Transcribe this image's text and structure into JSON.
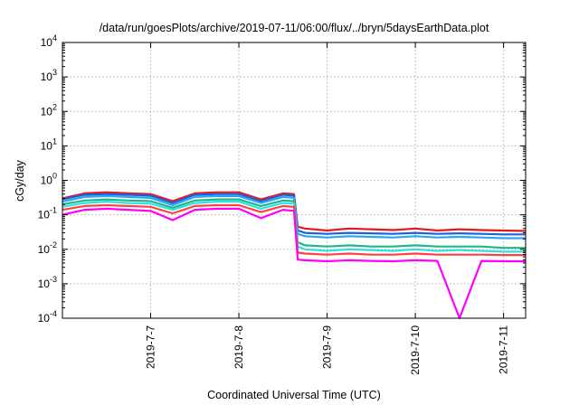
{
  "chart_data": {
    "type": "line",
    "title": "/data/run/goesPlots/archive/2019-07-11/06:00/flux/../bryn/5daysEarthData.plot",
    "xlabel": "Coordinated Universal Time (UTC)",
    "ylabel": "cGy/day",
    "yscale": "log",
    "ylim": [
      0.0001,
      10000
    ],
    "xlim": [
      "2019-07-06T00:00",
      "2019-07-11T06:00"
    ],
    "grid": true,
    "legend": "none",
    "y_ticks": [
      {
        "value": 10000,
        "base": "10",
        "exp": "4"
      },
      {
        "value": 1000,
        "base": "10",
        "exp": "3"
      },
      {
        "value": 100,
        "base": "10",
        "exp": "2"
      },
      {
        "value": 10,
        "base": "10",
        "exp": "1"
      },
      {
        "value": 1,
        "base": "10",
        "exp": "0"
      },
      {
        "value": 0.1,
        "base": "10",
        "exp": "-1"
      },
      {
        "value": 0.01,
        "base": "10",
        "exp": "-2"
      },
      {
        "value": 0.001,
        "base": "10",
        "exp": "-3"
      },
      {
        "value": 0.0001,
        "base": "10",
        "exp": "-4"
      }
    ],
    "x_ticks": [
      {
        "value": "2019-07-07T00:00",
        "label": "2019-7-7"
      },
      {
        "value": "2019-07-08T00:00",
        "label": "2019-7-8"
      },
      {
        "value": "2019-07-09T00:00",
        "label": "2019-7-9"
      },
      {
        "value": "2019-07-10T00:00",
        "label": "2019-7-10"
      },
      {
        "value": "2019-07-11T00:00",
        "label": "2019-7-11"
      }
    ],
    "x": [
      "2019-07-06T00:00",
      "2019-07-06T06:00",
      "2019-07-06T12:00",
      "2019-07-06T18:00",
      "2019-07-07T00:00",
      "2019-07-07T06:00",
      "2019-07-07T12:00",
      "2019-07-07T18:00",
      "2019-07-08T00:00",
      "2019-07-08T06:00",
      "2019-07-08T12:00",
      "2019-07-08T15:00",
      "2019-07-08T16:00",
      "2019-07-08T18:00",
      "2019-07-09T00:00",
      "2019-07-09T06:00",
      "2019-07-09T12:00",
      "2019-07-09T18:00",
      "2019-07-10T00:00",
      "2019-07-10T06:00",
      "2019-07-10T12:00",
      "2019-07-10T18:00",
      "2019-07-11T00:00",
      "2019-07-11T06:00"
    ],
    "series": [
      {
        "color": "#e41a1c",
        "values": [
          0.3,
          0.42,
          0.45,
          0.42,
          0.4,
          0.25,
          0.42,
          0.45,
          0.45,
          0.28,
          0.42,
          0.4,
          0.045,
          0.04,
          0.035,
          0.04,
          0.038,
          0.036,
          0.04,
          0.035,
          0.038,
          0.036,
          0.035,
          0.034
        ]
      },
      {
        "color": "#1f5fe0",
        "values": [
          0.28,
          0.38,
          0.4,
          0.38,
          0.36,
          0.22,
          0.38,
          0.4,
          0.4,
          0.25,
          0.38,
          0.36,
          0.035,
          0.03,
          0.028,
          0.03,
          0.029,
          0.028,
          0.03,
          0.028,
          0.029,
          0.028,
          0.027,
          0.027
        ]
      },
      {
        "color": "#2aa8f0",
        "values": [
          0.24,
          0.33,
          0.35,
          0.33,
          0.31,
          0.19,
          0.33,
          0.35,
          0.35,
          0.22,
          0.33,
          0.31,
          0.028,
          0.024,
          0.022,
          0.024,
          0.023,
          0.022,
          0.024,
          0.022,
          0.023,
          0.022,
          0.021,
          0.021
        ]
      },
      {
        "color": "#1db88a",
        "values": [
          0.2,
          0.26,
          0.28,
          0.26,
          0.25,
          0.16,
          0.26,
          0.28,
          0.28,
          0.18,
          0.26,
          0.25,
          0.016,
          0.013,
          0.012,
          0.013,
          0.012,
          0.012,
          0.013,
          0.012,
          0.012,
          0.012,
          0.011,
          0.011
        ]
      },
      {
        "color": "#33e0e0",
        "values": [
          0.17,
          0.22,
          0.24,
          0.22,
          0.21,
          0.14,
          0.22,
          0.24,
          0.24,
          0.15,
          0.22,
          0.21,
          0.012,
          0.01,
          0.009,
          0.01,
          0.0095,
          0.009,
          0.01,
          0.009,
          0.0095,
          0.009,
          0.0085,
          0.0085
        ]
      },
      {
        "color": "#ff4040",
        "values": [
          0.14,
          0.18,
          0.19,
          0.18,
          0.17,
          0.11,
          0.18,
          0.19,
          0.19,
          0.12,
          0.18,
          0.17,
          0.008,
          0.0075,
          0.007,
          0.0075,
          0.007,
          0.007,
          0.0075,
          0.007,
          0.007,
          0.007,
          0.0068,
          0.0068
        ]
      },
      {
        "color": "#ff00ff",
        "values": [
          0.1,
          0.14,
          0.15,
          0.14,
          0.13,
          0.07,
          0.14,
          0.15,
          0.15,
          0.08,
          0.14,
          0.13,
          0.005,
          0.0048,
          0.0045,
          0.0048,
          0.0046,
          0.0045,
          0.0048,
          0.0046,
          0.0001,
          0.0046,
          0.0045,
          0.0045
        ]
      }
    ]
  }
}
